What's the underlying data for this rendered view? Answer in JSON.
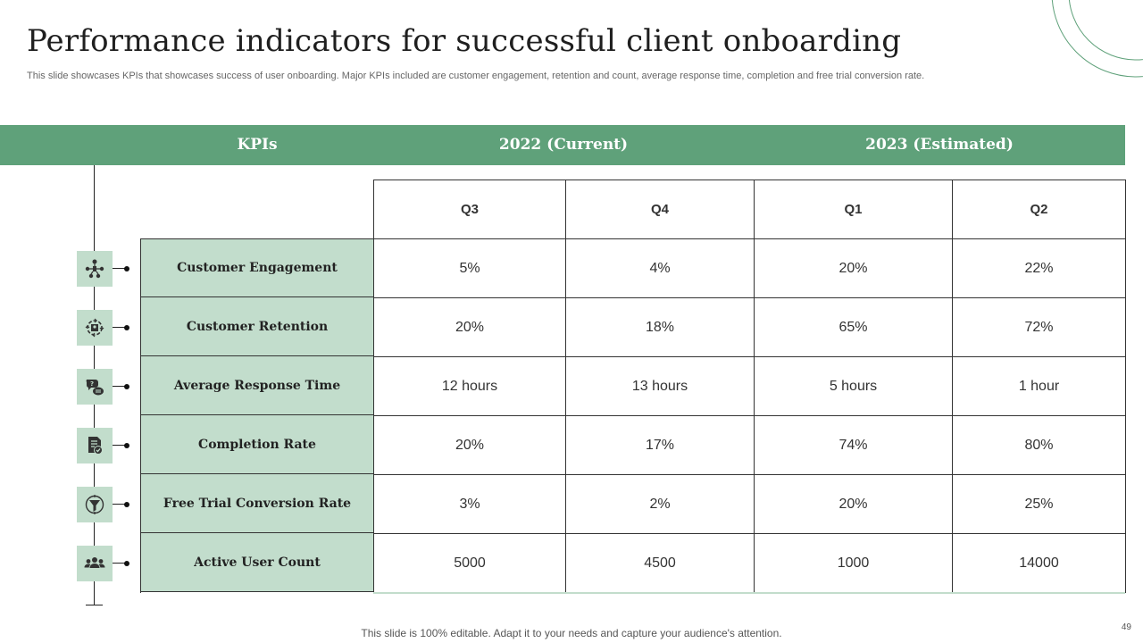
{
  "title": "Performance indicators for successful client onboarding",
  "subtitle": "This slide showcases KPIs that showcases success of user onboarding. Major KPIs included are customer engagement, retention and count, average response time, completion and free trial conversion rate.",
  "header": {
    "kpis": "KPIs",
    "year_current": "2022 (Current)",
    "year_estimated": "2023 (Estimated)"
  },
  "quarters": [
    "Q3",
    "Q4",
    "Q1",
    "Q2"
  ],
  "rows": [
    {
      "kpi": "Customer Engagement",
      "icon": "engagement-network-icon",
      "values": [
        "5%",
        "4%",
        "20%",
        "22%"
      ]
    },
    {
      "kpi": "Customer Retention",
      "icon": "retention-cycle-icon",
      "values": [
        "20%",
        "18%",
        "65%",
        "72%"
      ]
    },
    {
      "kpi": "Average Response Time",
      "icon": "response-chat-icon",
      "values": [
        "12 hours",
        "13 hours",
        "5 hours",
        "1 hour"
      ]
    },
    {
      "kpi": "Completion Rate",
      "icon": "completion-document-icon",
      "values": [
        "20%",
        "17%",
        "74%",
        "80%"
      ]
    },
    {
      "kpi": "Free Trial Conversion Rate",
      "icon": "conversion-funnel-icon",
      "values": [
        "3%",
        "2%",
        "20%",
        "25%"
      ]
    },
    {
      "kpi": "Active User Count",
      "icon": "users-group-icon",
      "values": [
        "5000",
        "4500",
        "1000",
        "14000"
      ]
    }
  ],
  "footer": "This slide is 100% editable. Adapt it to your needs and capture your audience's attention.",
  "page_number": "49",
  "colors": {
    "header_green": "#5fa17a",
    "label_green": "#c2ddcc",
    "deco_line": "#5fa17a"
  }
}
